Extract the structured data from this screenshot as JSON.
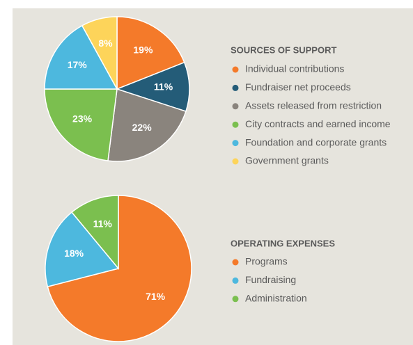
{
  "chart_data": [
    {
      "type": "pie",
      "title": "SOURCES OF SUPPORT",
      "categories": [
        "Individual contributions",
        "Fundraiser net proceeds",
        "Assets released from restriction",
        "City contracts and earned income",
        "Foundation and corporate grants",
        "Government grants"
      ],
      "values": [
        19,
        11,
        22,
        23,
        17,
        8
      ],
      "value_labels": [
        "19%",
        "11%",
        "22%",
        "23%",
        "17%",
        "8%"
      ],
      "colors": [
        "#f47a2a",
        "#245c78",
        "#8a847d",
        "#7bbf4f",
        "#4db8de",
        "#fdd45a"
      ]
    },
    {
      "type": "pie",
      "title": "OPERATING EXPENSES",
      "categories": [
        "Programs",
        "Fundraising",
        "Administration"
      ],
      "values": [
        71,
        18,
        11
      ],
      "value_labels": [
        "71%",
        "18%",
        "11%"
      ],
      "colors": [
        "#f47a2a",
        "#4db8de",
        "#7bbf4f"
      ]
    }
  ]
}
